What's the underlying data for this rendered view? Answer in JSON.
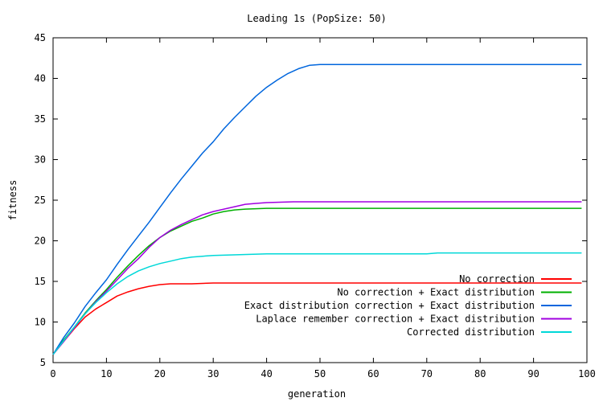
{
  "chart_data": {
    "type": "line",
    "title": "Leading 1s (PopSize: 50)",
    "xlabel": "generation",
    "ylabel": "fitness",
    "xlim": [
      0,
      100
    ],
    "ylim": [
      5,
      45
    ],
    "xticks": [
      0,
      10,
      20,
      30,
      40,
      50,
      60,
      70,
      80,
      90,
      100
    ],
    "yticks": [
      5,
      10,
      15,
      20,
      25,
      30,
      35,
      40,
      45
    ],
    "grid": false,
    "legend_position": "bottom-right",
    "series": [
      {
        "name": "No correction",
        "color": "#ff0000",
        "points": [
          [
            0,
            6
          ],
          [
            2,
            7.6
          ],
          [
            4,
            9.2
          ],
          [
            6,
            10.6
          ],
          [
            8,
            11.6
          ],
          [
            10,
            12.4
          ],
          [
            12,
            13.2
          ],
          [
            14,
            13.7
          ],
          [
            16,
            14.1
          ],
          [
            18,
            14.4
          ],
          [
            20,
            14.6
          ],
          [
            22,
            14.7
          ],
          [
            26,
            14.7
          ],
          [
            30,
            14.8
          ],
          [
            40,
            14.8
          ],
          [
            60,
            14.8
          ],
          [
            80,
            14.8
          ],
          [
            99,
            14.8
          ]
        ]
      },
      {
        "name": "No correction + Exact distribution",
        "color": "#00b000",
        "points": [
          [
            0,
            6
          ],
          [
            2,
            7.8
          ],
          [
            4,
            9.4
          ],
          [
            6,
            11.1
          ],
          [
            8,
            12.6
          ],
          [
            10,
            14.0
          ],
          [
            12,
            15.5
          ],
          [
            14,
            16.9
          ],
          [
            16,
            18.2
          ],
          [
            18,
            19.4
          ],
          [
            20,
            20.4
          ],
          [
            22,
            21.2
          ],
          [
            24,
            21.8
          ],
          [
            26,
            22.4
          ],
          [
            28,
            22.8
          ],
          [
            30,
            23.3
          ],
          [
            32,
            23.6
          ],
          [
            34,
            23.8
          ],
          [
            36,
            23.9
          ],
          [
            40,
            24.0
          ],
          [
            50,
            24.0
          ],
          [
            70,
            24.0
          ],
          [
            99,
            24.0
          ]
        ]
      },
      {
        "name": "Exact distribution correction + Exact distribution",
        "color": "#0066dd",
        "points": [
          [
            0,
            6
          ],
          [
            2,
            8.1
          ],
          [
            4,
            9.9
          ],
          [
            6,
            11.9
          ],
          [
            8,
            13.6
          ],
          [
            10,
            15.2
          ],
          [
            12,
            17.1
          ],
          [
            14,
            18.9
          ],
          [
            16,
            20.6
          ],
          [
            18,
            22.3
          ],
          [
            20,
            24.1
          ],
          [
            22,
            25.9
          ],
          [
            24,
            27.6
          ],
          [
            26,
            29.2
          ],
          [
            28,
            30.8
          ],
          [
            30,
            32.2
          ],
          [
            32,
            33.8
          ],
          [
            34,
            35.2
          ],
          [
            36,
            36.5
          ],
          [
            38,
            37.8
          ],
          [
            40,
            38.9
          ],
          [
            42,
            39.8
          ],
          [
            44,
            40.6
          ],
          [
            46,
            41.2
          ],
          [
            48,
            41.6
          ],
          [
            50,
            41.7
          ],
          [
            60,
            41.7
          ],
          [
            80,
            41.7
          ],
          [
            99,
            41.7
          ]
        ]
      },
      {
        "name": "Laplace remember correction + Exact distribution",
        "color": "#a000e0",
        "points": [
          [
            0,
            6
          ],
          [
            2,
            7.6
          ],
          [
            4,
            9.3
          ],
          [
            6,
            11.0
          ],
          [
            8,
            12.5
          ],
          [
            10,
            13.8
          ],
          [
            12,
            15.2
          ],
          [
            14,
            16.6
          ],
          [
            16,
            17.8
          ],
          [
            18,
            19.2
          ],
          [
            20,
            20.4
          ],
          [
            22,
            21.3
          ],
          [
            24,
            22.0
          ],
          [
            26,
            22.6
          ],
          [
            28,
            23.2
          ],
          [
            30,
            23.6
          ],
          [
            32,
            23.9
          ],
          [
            34,
            24.2
          ],
          [
            36,
            24.5
          ],
          [
            38,
            24.6
          ],
          [
            40,
            24.7
          ],
          [
            45,
            24.8
          ],
          [
            60,
            24.8
          ],
          [
            80,
            24.8
          ],
          [
            99,
            24.8
          ]
        ]
      },
      {
        "name": "Corrected distribution",
        "color": "#00d8d8",
        "points": [
          [
            0,
            6
          ],
          [
            2,
            7.7
          ],
          [
            4,
            9.4
          ],
          [
            6,
            11.0
          ],
          [
            8,
            12.4
          ],
          [
            10,
            13.6
          ],
          [
            12,
            14.7
          ],
          [
            14,
            15.6
          ],
          [
            16,
            16.3
          ],
          [
            18,
            16.8
          ],
          [
            20,
            17.2
          ],
          [
            22,
            17.5
          ],
          [
            24,
            17.8
          ],
          [
            26,
            18.0
          ],
          [
            30,
            18.2
          ],
          [
            35,
            18.3
          ],
          [
            40,
            18.4
          ],
          [
            50,
            18.4
          ],
          [
            70,
            18.4
          ],
          [
            72,
            18.5
          ],
          [
            99,
            18.5
          ]
        ]
      }
    ]
  }
}
